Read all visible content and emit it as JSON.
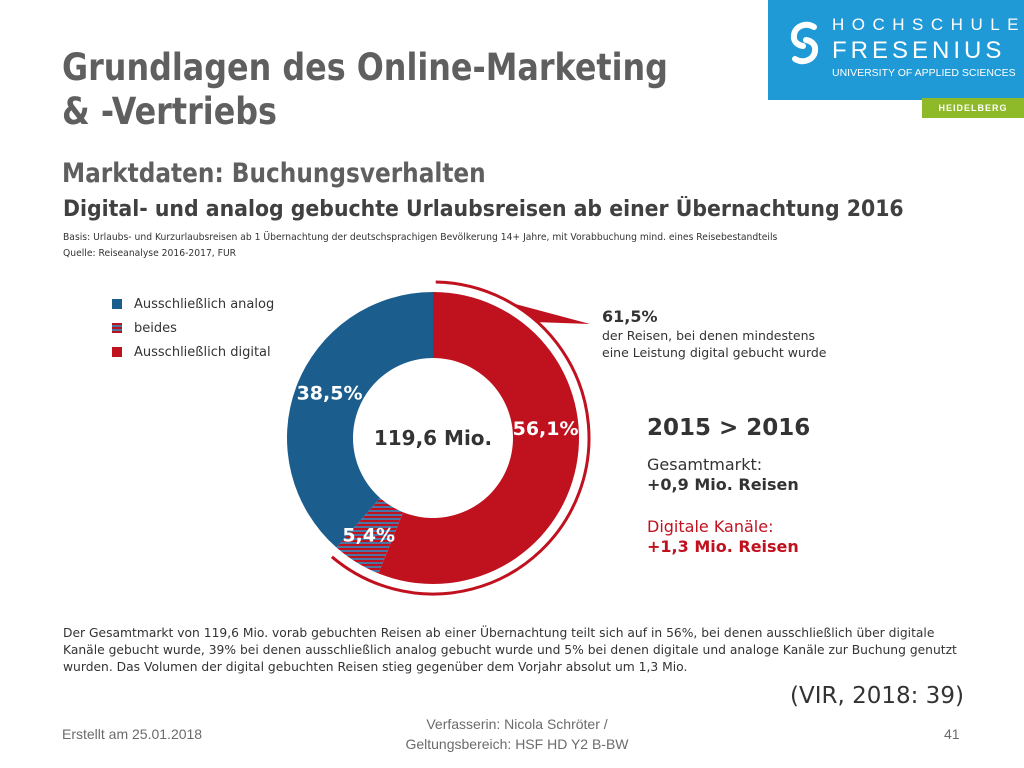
{
  "slide": {
    "title_line1": "Grundlagen des Online-Marketing",
    "title_line2": "& -Vertriebs",
    "subtitle": "Marktdaten: Buchungsverhalten",
    "citation": "(VIR, 2018: 39)"
  },
  "logo": {
    "line1": "HOCHSCHULE",
    "line2": "FRESENIUS",
    "line3": "UNIVERSITY OF APPLIED SCIENCES",
    "location": "HEIDELBERG",
    "background_color": "#1f9ad7",
    "location_color": "#8eba2a"
  },
  "figure": {
    "title": "Digital- und analog gebuchte Urlaubsreisen ab einer Übernachtung 2016",
    "basis": "Basis: Urlaubs- und Kurzurlaubsreisen ab 1 Übernachtung der deutschsprachigen Bevölkerung 14+ Jahre, mit Vorabbuchung mind. eines Reisebestandteils",
    "source": "Quelle: Reiseanalyse 2016-2017, FUR",
    "callout_pct": "61,5%",
    "callout_line1": "der Reisen, bei denen mindestens",
    "callout_line2": "eine Leistung digital gebucht wurde",
    "compare_heading": "2015 > 2016",
    "total_label": "Gesamtmarkt:",
    "total_value": "+0,9 Mio. Reisen",
    "digital_label": "Digitale Kanäle:",
    "digital_value": "+1,3 Mio. Reisen",
    "description": "Der Gesamtmarkt von 119,6 Mio. vorab gebuchten Reisen ab einer Übernachtung teilt sich auf in 56%, bei denen ausschließlich über digitale Kanäle gebucht wurde, 39% bei denen ausschließlich analog gebucht wurde und 5% bei denen digitale und analoge Kanäle zur Buchung genutzt wurden. Das Volumen der digital gebuchten Reisen stieg gegenüber dem Vorjahr absolut um 1,3 Mio."
  },
  "chart_data": {
    "type": "pie",
    "center_label": "119,6 Mio.",
    "categories": [
      "Ausschließlich analog",
      "beides",
      "Ausschließlich digital"
    ],
    "values": [
      38.5,
      5.4,
      56.1
    ],
    "value_labels": [
      "38,5%",
      "5,4%",
      "56,1%"
    ],
    "colors": [
      "#1b5e8e",
      "#c0111f",
      "#c0111f"
    ],
    "hatched": [
      false,
      true,
      false
    ],
    "hatch_color": "#4a76a6",
    "legend_position": "top-left",
    "highlight_arc_color": "#c0111f"
  },
  "footer": {
    "created": "Erstellt am 25.01.2018",
    "author_line1": "Verfasserin: Nicola Schröter /",
    "author_line2": "Geltungsbereich:  HSF HD Y2 B-BW",
    "page_number": "41"
  }
}
